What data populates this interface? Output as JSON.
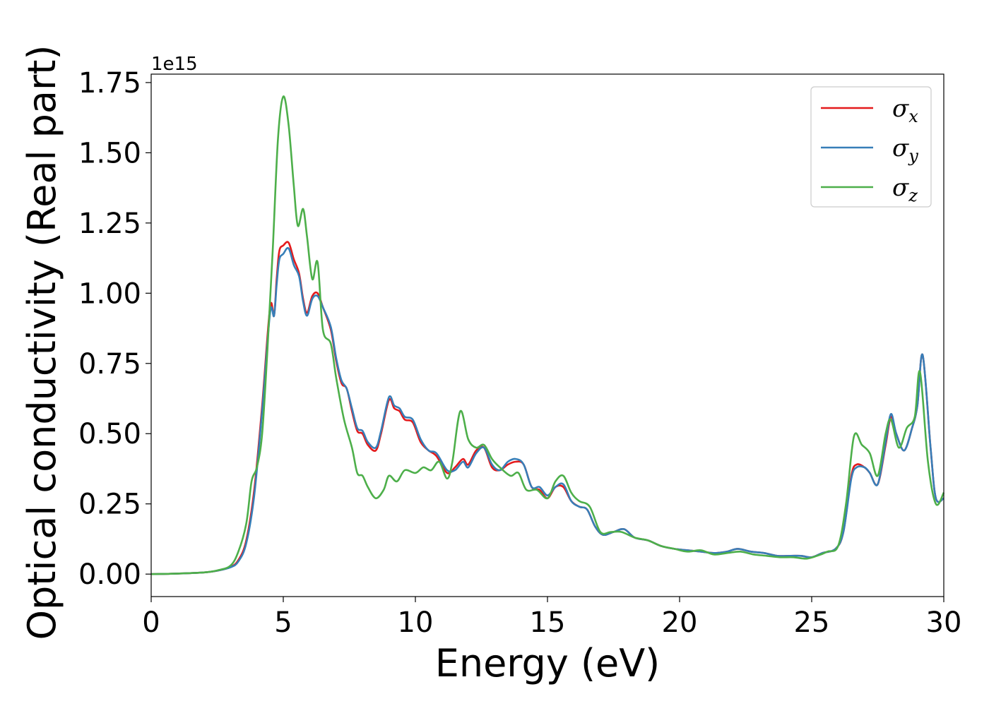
{
  "chart_data": {
    "type": "line",
    "xlabel": "Energy (eV)",
    "ylabel": "Optical conductivity (Real part)",
    "y_offset_label": "1e15",
    "xlim": [
      0,
      30
    ],
    "ylim": [
      -0.08,
      1.78
    ],
    "x_ticks": [
      0,
      5,
      10,
      15,
      20,
      25,
      30
    ],
    "x_tick_labels": [
      "0",
      "5",
      "10",
      "15",
      "20",
      "25",
      "30"
    ],
    "y_ticks": [
      0,
      0.25,
      0.5,
      0.75,
      1.0,
      1.25,
      1.5,
      1.75
    ],
    "y_tick_labels": [
      "0.00",
      "0.25",
      "0.50",
      "0.75",
      "1.00",
      "1.25",
      "1.50",
      "1.75"
    ],
    "grid": false,
    "legend_position": "top-right",
    "series": [
      {
        "name": "σx",
        "symbol": "σ",
        "subscript": "x",
        "color": "#e41a1c",
        "points": [
          [
            0,
            0
          ],
          [
            1,
            0.002
          ],
          [
            2,
            0.006
          ],
          [
            2.5,
            0.012
          ],
          [
            3,
            0.025
          ],
          [
            3.3,
            0.05
          ],
          [
            3.6,
            0.12
          ],
          [
            3.9,
            0.3
          ],
          [
            4.2,
            0.6
          ],
          [
            4.5,
            0.95
          ],
          [
            4.65,
            0.92
          ],
          [
            4.75,
            1.05
          ],
          [
            4.85,
            1.15
          ],
          [
            5.0,
            1.17
          ],
          [
            5.2,
            1.18
          ],
          [
            5.4,
            1.12
          ],
          [
            5.6,
            1.07
          ],
          [
            5.75,
            0.98
          ],
          [
            5.9,
            0.93
          ],
          [
            6.1,
            0.99
          ],
          [
            6.3,
            1.0
          ],
          [
            6.5,
            0.95
          ],
          [
            6.8,
            0.87
          ],
          [
            7.0,
            0.76
          ],
          [
            7.2,
            0.68
          ],
          [
            7.4,
            0.66
          ],
          [
            7.6,
            0.58
          ],
          [
            7.8,
            0.51
          ],
          [
            8.0,
            0.5
          ],
          [
            8.2,
            0.46
          ],
          [
            8.5,
            0.44
          ],
          [
            8.7,
            0.5
          ],
          [
            9.0,
            0.62
          ],
          [
            9.2,
            0.59
          ],
          [
            9.4,
            0.58
          ],
          [
            9.6,
            0.55
          ],
          [
            9.9,
            0.54
          ],
          [
            10.2,
            0.47
          ],
          [
            10.5,
            0.44
          ],
          [
            10.8,
            0.42
          ],
          [
            11.2,
            0.36
          ],
          [
            11.5,
            0.38
          ],
          [
            11.8,
            0.41
          ],
          [
            12.0,
            0.39
          ],
          [
            12.3,
            0.44
          ],
          [
            12.6,
            0.45
          ],
          [
            12.9,
            0.38
          ],
          [
            13.2,
            0.37
          ],
          [
            13.5,
            0.39
          ],
          [
            13.8,
            0.4
          ],
          [
            14.1,
            0.39
          ],
          [
            14.4,
            0.31
          ],
          [
            14.7,
            0.3
          ],
          [
            15.0,
            0.27
          ],
          [
            15.3,
            0.31
          ],
          [
            15.6,
            0.31
          ],
          [
            15.9,
            0.26
          ],
          [
            16.2,
            0.24
          ],
          [
            16.5,
            0.23
          ],
          [
            16.8,
            0.17
          ],
          [
            17.1,
            0.14
          ],
          [
            17.5,
            0.15
          ],
          [
            17.9,
            0.16
          ],
          [
            18.3,
            0.13
          ],
          [
            18.8,
            0.12
          ],
          [
            19.3,
            0.1
          ],
          [
            19.8,
            0.09
          ],
          [
            20.3,
            0.085
          ],
          [
            20.8,
            0.08
          ],
          [
            21.3,
            0.075
          ],
          [
            21.8,
            0.08
          ],
          [
            22.2,
            0.09
          ],
          [
            22.7,
            0.08
          ],
          [
            23.2,
            0.075
          ],
          [
            23.7,
            0.065
          ],
          [
            24.2,
            0.065
          ],
          [
            24.6,
            0.065
          ],
          [
            25.0,
            0.06
          ],
          [
            25.4,
            0.075
          ],
          [
            25.9,
            0.09
          ],
          [
            26.2,
            0.15
          ],
          [
            26.5,
            0.35
          ],
          [
            26.7,
            0.39
          ],
          [
            27.0,
            0.38
          ],
          [
            27.2,
            0.36
          ],
          [
            27.5,
            0.32
          ],
          [
            27.8,
            0.46
          ],
          [
            28.0,
            0.56
          ],
          [
            28.2,
            0.5
          ],
          [
            28.5,
            0.44
          ],
          [
            28.8,
            0.52
          ],
          [
            29.0,
            0.6
          ],
          [
            29.2,
            0.78
          ],
          [
            29.5,
            0.45
          ],
          [
            29.7,
            0.27
          ],
          [
            30.0,
            0.27
          ]
        ]
      },
      {
        "name": "σy",
        "symbol": "σ",
        "subscript": "y",
        "color": "#377eb8",
        "points": [
          [
            0,
            0
          ],
          [
            1,
            0.002
          ],
          [
            2,
            0.006
          ],
          [
            2.5,
            0.012
          ],
          [
            3,
            0.024
          ],
          [
            3.3,
            0.045
          ],
          [
            3.6,
            0.11
          ],
          [
            3.9,
            0.28
          ],
          [
            4.2,
            0.58
          ],
          [
            4.5,
            0.93
          ],
          [
            4.65,
            0.92
          ],
          [
            4.75,
            1.03
          ],
          [
            4.85,
            1.12
          ],
          [
            5.0,
            1.14
          ],
          [
            5.2,
            1.16
          ],
          [
            5.4,
            1.1
          ],
          [
            5.6,
            1.06
          ],
          [
            5.75,
            0.97
          ],
          [
            5.9,
            0.92
          ],
          [
            6.1,
            0.98
          ],
          [
            6.3,
            0.99
          ],
          [
            6.5,
            0.95
          ],
          [
            6.8,
            0.88
          ],
          [
            7.0,
            0.77
          ],
          [
            7.2,
            0.69
          ],
          [
            7.4,
            0.66
          ],
          [
            7.6,
            0.59
          ],
          [
            7.8,
            0.52
          ],
          [
            8.0,
            0.51
          ],
          [
            8.2,
            0.47
          ],
          [
            8.5,
            0.45
          ],
          [
            8.7,
            0.51
          ],
          [
            9.0,
            0.63
          ],
          [
            9.2,
            0.6
          ],
          [
            9.4,
            0.59
          ],
          [
            9.6,
            0.56
          ],
          [
            9.9,
            0.55
          ],
          [
            10.2,
            0.48
          ],
          [
            10.5,
            0.44
          ],
          [
            10.8,
            0.43
          ],
          [
            11.2,
            0.37
          ],
          [
            11.5,
            0.37
          ],
          [
            11.8,
            0.4
          ],
          [
            12.0,
            0.38
          ],
          [
            12.3,
            0.43
          ],
          [
            12.6,
            0.45
          ],
          [
            12.9,
            0.39
          ],
          [
            13.2,
            0.37
          ],
          [
            13.5,
            0.4
          ],
          [
            13.8,
            0.41
          ],
          [
            14.1,
            0.39
          ],
          [
            14.4,
            0.31
          ],
          [
            14.7,
            0.31
          ],
          [
            15.0,
            0.28
          ],
          [
            15.3,
            0.31
          ],
          [
            15.6,
            0.32
          ],
          [
            15.9,
            0.26
          ],
          [
            16.2,
            0.24
          ],
          [
            16.5,
            0.23
          ],
          [
            16.8,
            0.17
          ],
          [
            17.1,
            0.14
          ],
          [
            17.5,
            0.15
          ],
          [
            17.9,
            0.16
          ],
          [
            18.3,
            0.13
          ],
          [
            18.8,
            0.12
          ],
          [
            19.3,
            0.1
          ],
          [
            19.8,
            0.09
          ],
          [
            20.3,
            0.085
          ],
          [
            20.8,
            0.08
          ],
          [
            21.3,
            0.075
          ],
          [
            21.8,
            0.08
          ],
          [
            22.2,
            0.09
          ],
          [
            22.7,
            0.08
          ],
          [
            23.2,
            0.075
          ],
          [
            23.7,
            0.065
          ],
          [
            24.2,
            0.065
          ],
          [
            24.6,
            0.065
          ],
          [
            25.0,
            0.06
          ],
          [
            25.4,
            0.075
          ],
          [
            25.9,
            0.09
          ],
          [
            26.2,
            0.15
          ],
          [
            26.5,
            0.34
          ],
          [
            26.7,
            0.38
          ],
          [
            27.0,
            0.38
          ],
          [
            27.2,
            0.36
          ],
          [
            27.5,
            0.32
          ],
          [
            27.8,
            0.47
          ],
          [
            28.0,
            0.57
          ],
          [
            28.2,
            0.5
          ],
          [
            28.5,
            0.44
          ],
          [
            28.8,
            0.52
          ],
          [
            29.0,
            0.6
          ],
          [
            29.2,
            0.78
          ],
          [
            29.5,
            0.45
          ],
          [
            29.7,
            0.27
          ],
          [
            30.0,
            0.27
          ]
        ]
      },
      {
        "name": "σz",
        "symbol": "σ",
        "subscript": "z",
        "color": "#4daf4a",
        "points": [
          [
            0,
            0
          ],
          [
            1,
            0.002
          ],
          [
            2,
            0.006
          ],
          [
            2.5,
            0.013
          ],
          [
            3,
            0.03
          ],
          [
            3.3,
            0.08
          ],
          [
            3.6,
            0.18
          ],
          [
            3.8,
            0.33
          ],
          [
            4.0,
            0.38
          ],
          [
            4.2,
            0.5
          ],
          [
            4.4,
            0.8
          ],
          [
            4.6,
            1.15
          ],
          [
            4.8,
            1.55
          ],
          [
            5.0,
            1.7
          ],
          [
            5.2,
            1.6
          ],
          [
            5.4,
            1.38
          ],
          [
            5.55,
            1.24
          ],
          [
            5.75,
            1.3
          ],
          [
            5.9,
            1.2
          ],
          [
            6.1,
            1.05
          ],
          [
            6.3,
            1.11
          ],
          [
            6.5,
            0.87
          ],
          [
            6.8,
            0.82
          ],
          [
            7.0,
            0.7
          ],
          [
            7.3,
            0.55
          ],
          [
            7.6,
            0.45
          ],
          [
            7.8,
            0.36
          ],
          [
            8.0,
            0.35
          ],
          [
            8.2,
            0.31
          ],
          [
            8.5,
            0.27
          ],
          [
            8.8,
            0.3
          ],
          [
            9.0,
            0.35
          ],
          [
            9.3,
            0.33
          ],
          [
            9.6,
            0.37
          ],
          [
            10.0,
            0.36
          ],
          [
            10.3,
            0.38
          ],
          [
            10.6,
            0.37
          ],
          [
            10.9,
            0.4
          ],
          [
            11.2,
            0.34
          ],
          [
            11.4,
            0.4
          ],
          [
            11.7,
            0.58
          ],
          [
            12.0,
            0.48
          ],
          [
            12.3,
            0.45
          ],
          [
            12.6,
            0.46
          ],
          [
            12.9,
            0.41
          ],
          [
            13.2,
            0.38
          ],
          [
            13.6,
            0.35
          ],
          [
            13.9,
            0.36
          ],
          [
            14.2,
            0.3
          ],
          [
            14.6,
            0.3
          ],
          [
            15.0,
            0.27
          ],
          [
            15.3,
            0.33
          ],
          [
            15.6,
            0.35
          ],
          [
            15.9,
            0.29
          ],
          [
            16.2,
            0.26
          ],
          [
            16.6,
            0.24
          ],
          [
            17.0,
            0.15
          ],
          [
            17.4,
            0.15
          ],
          [
            17.8,
            0.15
          ],
          [
            18.3,
            0.13
          ],
          [
            18.8,
            0.12
          ],
          [
            19.3,
            0.1
          ],
          [
            19.8,
            0.09
          ],
          [
            20.3,
            0.08
          ],
          [
            20.8,
            0.085
          ],
          [
            21.3,
            0.07
          ],
          [
            21.8,
            0.075
          ],
          [
            22.3,
            0.08
          ],
          [
            22.8,
            0.07
          ],
          [
            23.3,
            0.065
          ],
          [
            23.8,
            0.06
          ],
          [
            24.3,
            0.06
          ],
          [
            24.8,
            0.055
          ],
          [
            25.2,
            0.065
          ],
          [
            25.6,
            0.08
          ],
          [
            26.0,
            0.1
          ],
          [
            26.3,
            0.25
          ],
          [
            26.6,
            0.49
          ],
          [
            26.9,
            0.46
          ],
          [
            27.2,
            0.43
          ],
          [
            27.5,
            0.35
          ],
          [
            27.8,
            0.5
          ],
          [
            28.0,
            0.55
          ],
          [
            28.3,
            0.45
          ],
          [
            28.6,
            0.52
          ],
          [
            28.9,
            0.56
          ],
          [
            29.1,
            0.72
          ],
          [
            29.4,
            0.4
          ],
          [
            29.7,
            0.25
          ],
          [
            30.0,
            0.29
          ]
        ]
      }
    ]
  }
}
